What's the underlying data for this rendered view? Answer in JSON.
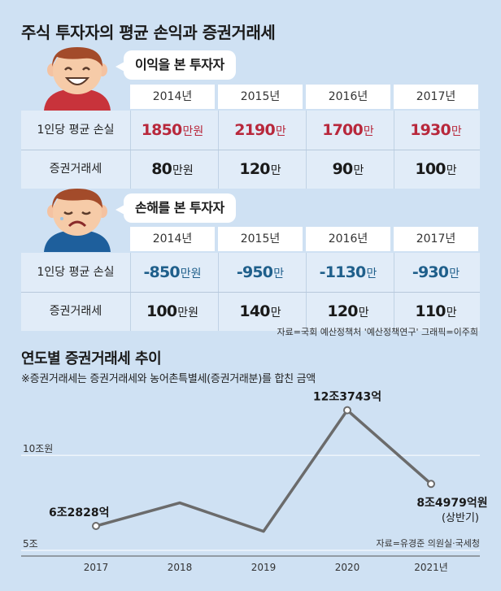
{
  "title": "주식 투자자의 평균 손익과 증권거래세",
  "profit_group": {
    "label": "이익을 본 투자자",
    "years": [
      "2014년",
      "2015년",
      "2016년",
      "2017년"
    ],
    "rows": [
      {
        "label": "1인당 평균 손실",
        "values": [
          {
            "num": "1850",
            "unit": "만원"
          },
          {
            "num": "2190",
            "unit": "만"
          },
          {
            "num": "1700",
            "unit": "만"
          },
          {
            "num": "1930",
            "unit": "만"
          }
        ]
      },
      {
        "label": "증권거래세",
        "values": [
          {
            "num": "80",
            "unit": "만원"
          },
          {
            "num": "120",
            "unit": "만"
          },
          {
            "num": "90",
            "unit": "만"
          },
          {
            "num": "100",
            "unit": "만"
          }
        ]
      }
    ]
  },
  "loss_group": {
    "label": "손해를 본 투자자",
    "years": [
      "2014년",
      "2015년",
      "2016년",
      "2017년"
    ],
    "rows": [
      {
        "label": "1인당 평균 손실",
        "values": [
          {
            "num": "-850",
            "unit": "만원"
          },
          {
            "num": "-950",
            "unit": "만"
          },
          {
            "num": "-1130",
            "unit": "만"
          },
          {
            "num": "-930",
            "unit": "만"
          }
        ]
      },
      {
        "label": "증권거래세",
        "values": [
          {
            "num": "100",
            "unit": "만원"
          },
          {
            "num": "140",
            "unit": "만"
          },
          {
            "num": "120",
            "unit": "만"
          },
          {
            "num": "110",
            "unit": "만"
          }
        ]
      }
    ]
  },
  "source_top": "자료=국회 예산정책처 '예산정책연구'   그래픽=이주희",
  "colors": {
    "background": "#cfe1f3",
    "profit": "#b8283c",
    "loss": "#1f5f8b",
    "line": "#6b6b6b"
  },
  "chart_data": {
    "type": "line",
    "title": "연도별 증권거래세 추이",
    "subtitle": "※증권거래세는 증권거래세와 농어촌특별세(증권거래분)를 합친 금액",
    "x": [
      "2017",
      "2018",
      "2019",
      "2020",
      "2021년"
    ],
    "series": [
      {
        "values": [
          6.2828,
          7.5,
          6.0,
          12.3743,
          8.4979
        ]
      }
    ],
    "ylim": [
      5,
      12.4
    ],
    "ytick_labels": [
      {
        "value": 10,
        "label": "10조원"
      },
      {
        "value": 5,
        "label": "5조"
      }
    ],
    "point_labels": [
      {
        "index": 0,
        "text": "6조2828억"
      },
      {
        "index": 3,
        "text": "12조3743억"
      },
      {
        "index": 4,
        "text": "8조4979억원",
        "sub": "(상반기)"
      }
    ],
    "source": "자료=유경준 의원실·국세청"
  }
}
